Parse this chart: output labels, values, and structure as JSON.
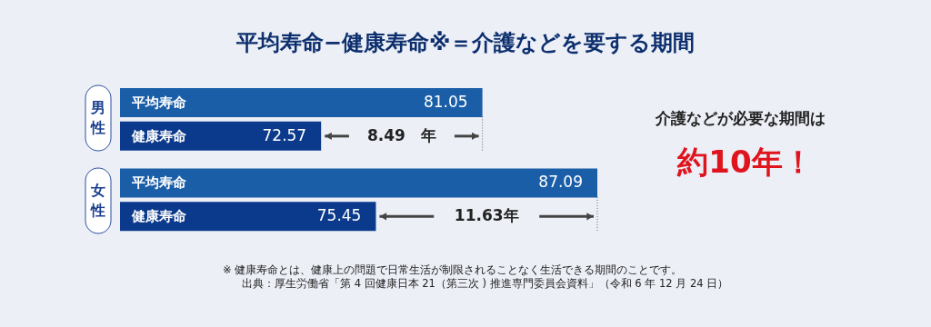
{
  "chart_data": {
    "type": "bar",
    "orientation": "horizontal",
    "title": "平均寿命−健康寿命※＝介護などを要する期間",
    "categories": [
      "平均寿命",
      "健康寿命",
      "平均寿命",
      "健康寿命"
    ],
    "values": [
      81.05,
      72.57,
      87.09,
      75.45
    ],
    "colors": [
      "#1a5ea8",
      "#0b3a8c",
      "#1a5ea8",
      "#0b3a8c"
    ],
    "xlim": [
      62,
      87.09
    ],
    "data_labels": true,
    "annotations": [
      "男性",
      "女性",
      "8.49　年",
      "11.63年",
      "介護などが必要な期間は",
      "約10年！",
      "※  健康寿命とは、健康上の問題で日常生活が制限されることなく生活できる期間のことです。",
      "出典：厚生労働省「第 4 回健康日本 21（第三次 ) 推進専門委員会資料」（令和 6 年 12 月 24 日）"
    ]
  }
}
